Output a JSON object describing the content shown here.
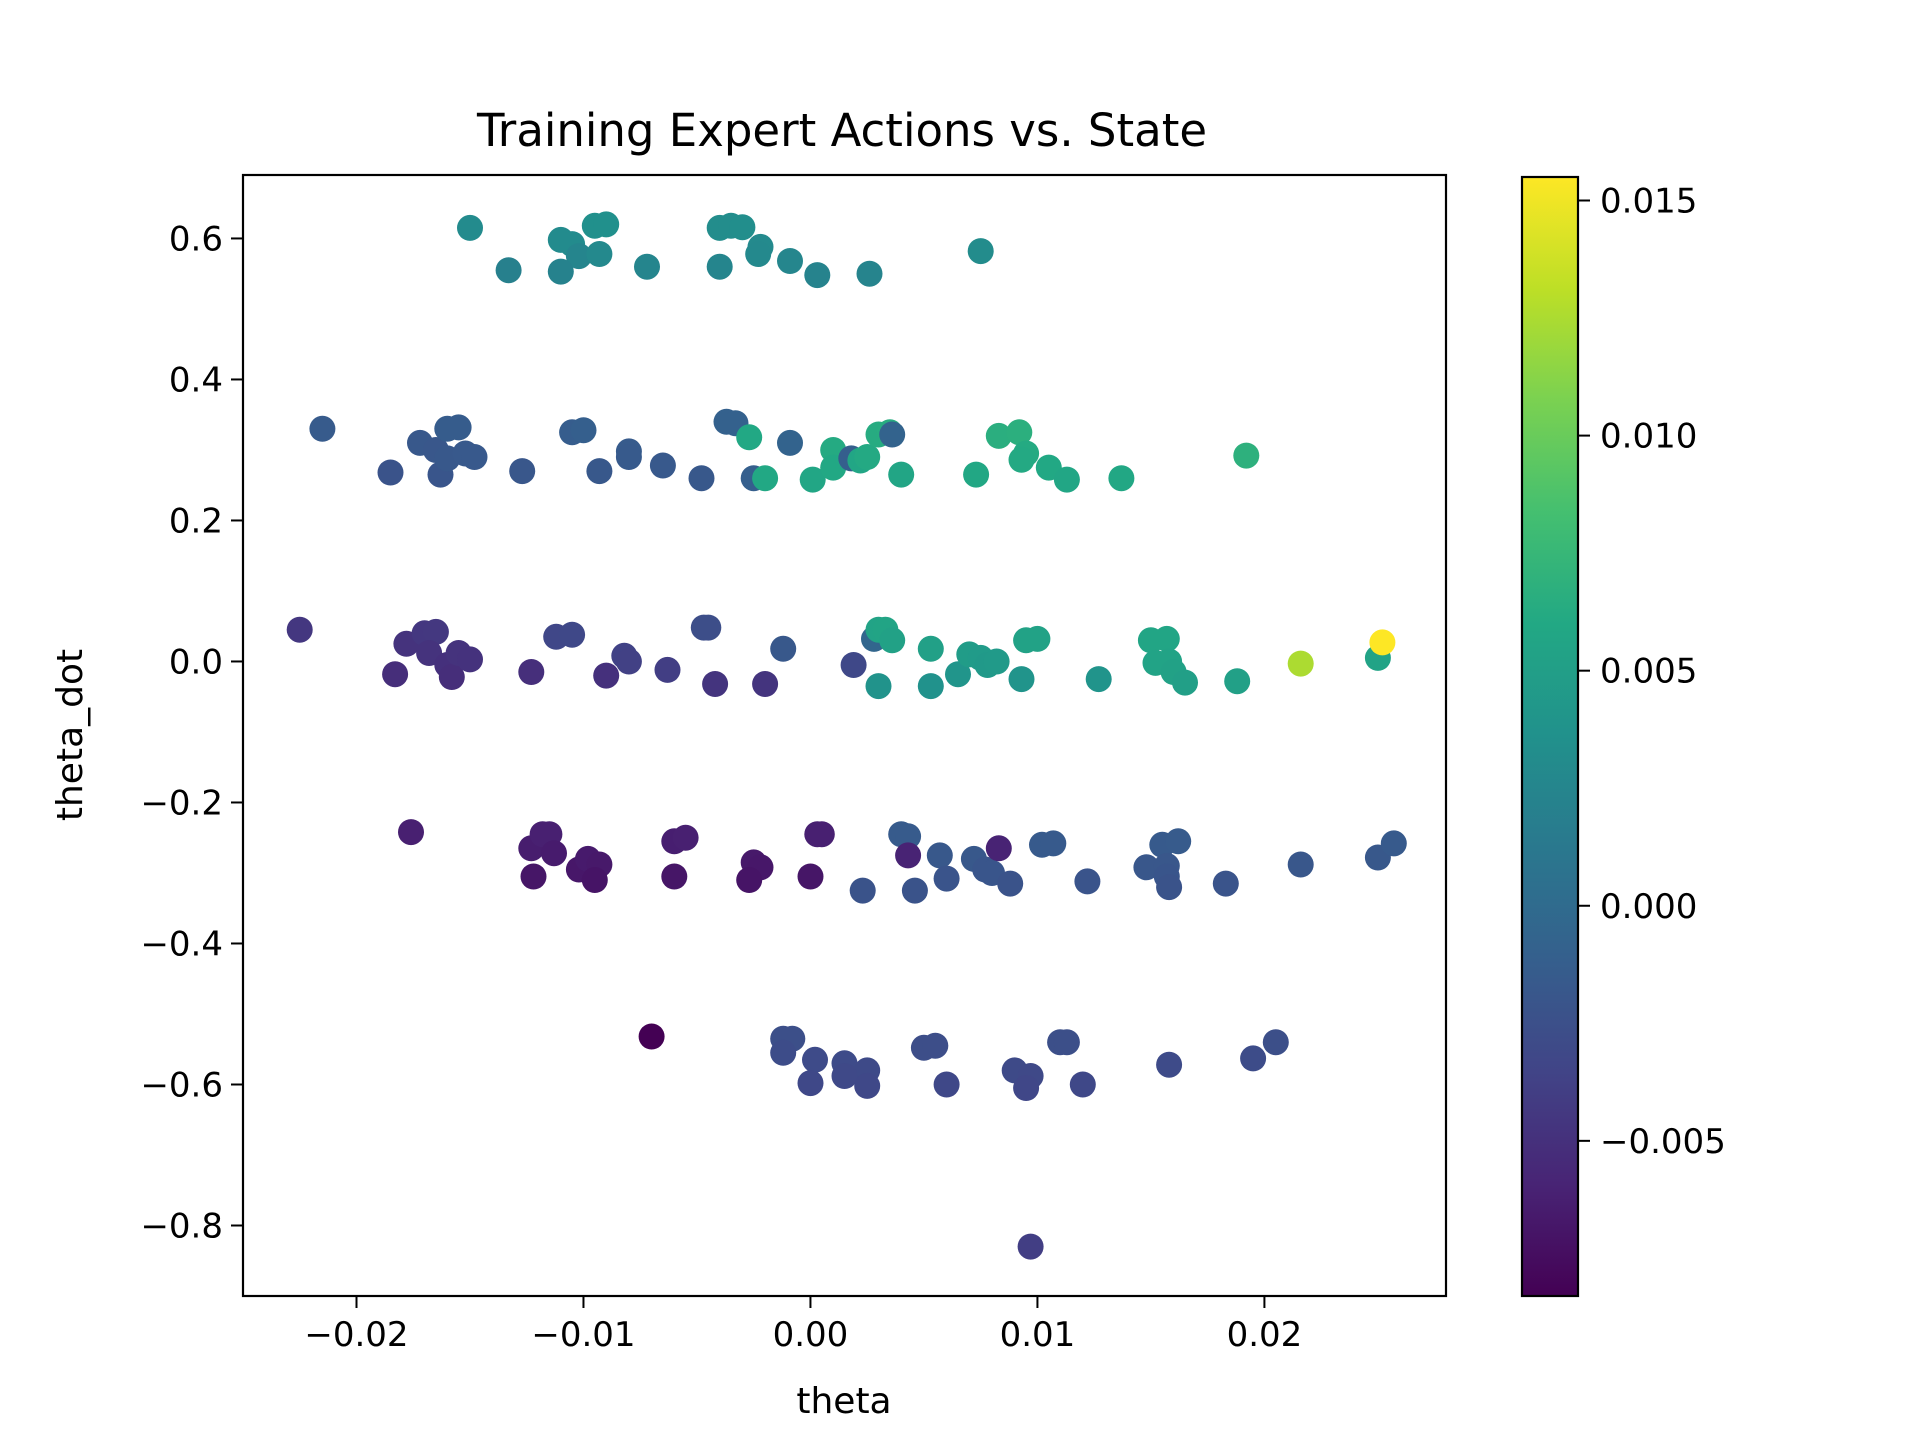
{
  "chart_data": {
    "type": "scatter",
    "title": "Training Expert Actions vs. State",
    "xlabel": "theta",
    "ylabel": "theta_dot",
    "xlim": [
      -0.025,
      0.028
    ],
    "ylim": [
      -0.9,
      0.69
    ],
    "xticks": [
      -0.02,
      -0.01,
      0.0,
      0.01,
      0.02
    ],
    "xtick_labels": [
      "−0.02",
      "−0.01",
      "0.00",
      "0.01",
      "0.02"
    ],
    "yticks": [
      0.6,
      0.4,
      0.2,
      0.0,
      -0.2,
      -0.4,
      -0.6,
      -0.8
    ],
    "ytick_labels": [
      "0.6",
      "0.4",
      "0.2",
      "0.0",
      "−0.2",
      "−0.4",
      "−0.6",
      "−0.8"
    ],
    "grid": false,
    "colorbar": {
      "cmap": "viridis",
      "range": [
        -0.0083,
        0.0155
      ],
      "ticks": [
        0.015,
        0.01,
        0.005,
        0.0,
        -0.005
      ],
      "tick_labels": [
        "0.015",
        "0.010",
        "0.005",
        "0.000",
        "−0.005"
      ]
    },
    "points": [
      {
        "x": -0.015,
        "y": 0.615,
        "c": 0.003
      },
      {
        "x": -0.0133,
        "y": 0.555,
        "c": 0.002
      },
      {
        "x": -0.011,
        "y": 0.598,
        "c": 0.003
      },
      {
        "x": -0.0105,
        "y": 0.592,
        "c": 0.003
      },
      {
        "x": -0.0102,
        "y": 0.575,
        "c": 0.0025
      },
      {
        "x": -0.011,
        "y": 0.553,
        "c": 0.0022
      },
      {
        "x": -0.0095,
        "y": 0.618,
        "c": 0.0035
      },
      {
        "x": -0.009,
        "y": 0.62,
        "c": 0.0035
      },
      {
        "x": -0.0093,
        "y": 0.578,
        "c": 0.0028
      },
      {
        "x": -0.0072,
        "y": 0.56,
        "c": 0.0025
      },
      {
        "x": -0.004,
        "y": 0.615,
        "c": 0.0032
      },
      {
        "x": -0.0035,
        "y": 0.618,
        "c": 0.0032
      },
      {
        "x": -0.003,
        "y": 0.616,
        "c": 0.0033
      },
      {
        "x": -0.004,
        "y": 0.56,
        "c": 0.0025
      },
      {
        "x": -0.0022,
        "y": 0.588,
        "c": 0.0029
      },
      {
        "x": -0.0023,
        "y": 0.578,
        "c": 0.0028
      },
      {
        "x": -0.0009,
        "y": 0.568,
        "c": 0.0026
      },
      {
        "x": 0.0003,
        "y": 0.548,
        "c": 0.0023
      },
      {
        "x": 0.0026,
        "y": 0.55,
        "c": 0.0024
      },
      {
        "x": 0.0075,
        "y": 0.582,
        "c": 0.0031
      },
      {
        "x": -0.0215,
        "y": 0.33,
        "c": -0.0015
      },
      {
        "x": -0.0185,
        "y": 0.268,
        "c": -0.0022
      },
      {
        "x": -0.0172,
        "y": 0.31,
        "c": -0.0018
      },
      {
        "x": -0.0165,
        "y": 0.3,
        "c": -0.0019
      },
      {
        "x": -0.016,
        "y": 0.33,
        "c": -0.0014
      },
      {
        "x": -0.0155,
        "y": 0.332,
        "c": -0.0014
      },
      {
        "x": -0.0163,
        "y": 0.265,
        "c": -0.002
      },
      {
        "x": -0.016,
        "y": 0.288,
        "c": -0.0018
      },
      {
        "x": -0.0152,
        "y": 0.295,
        "c": -0.0017
      },
      {
        "x": -0.0148,
        "y": 0.29,
        "c": -0.0017
      },
      {
        "x": -0.0127,
        "y": 0.27,
        "c": -0.0019
      },
      {
        "x": -0.0105,
        "y": 0.325,
        "c": -0.0013
      },
      {
        "x": -0.01,
        "y": 0.328,
        "c": -0.0012
      },
      {
        "x": -0.0093,
        "y": 0.27,
        "c": -0.0018
      },
      {
        "x": -0.008,
        "y": 0.298,
        "c": -0.0015
      },
      {
        "x": -0.008,
        "y": 0.29,
        "c": -0.0016
      },
      {
        "x": -0.0065,
        "y": 0.278,
        "c": -0.0017
      },
      {
        "x": -0.0048,
        "y": 0.26,
        "c": -0.0018
      },
      {
        "x": -0.0037,
        "y": 0.34,
        "c": -0.001
      },
      {
        "x": -0.0033,
        "y": 0.338,
        "c": -0.001
      },
      {
        "x": -0.0027,
        "y": 0.318,
        "c": 0.006
      },
      {
        "x": -0.0025,
        "y": 0.26,
        "c": -0.0012
      },
      {
        "x": -0.002,
        "y": 0.26,
        "c": 0.006
      },
      {
        "x": -0.0009,
        "y": 0.31,
        "c": -0.0008
      },
      {
        "x": 0.0001,
        "y": 0.258,
        "c": 0.0058
      },
      {
        "x": 0.001,
        "y": 0.3,
        "c": 0.0062
      },
      {
        "x": 0.001,
        "y": 0.275,
        "c": 0.006
      },
      {
        "x": 0.0018,
        "y": 0.288,
        "c": -0.0012
      },
      {
        "x": 0.0022,
        "y": 0.285,
        "c": 0.0058
      },
      {
        "x": 0.0025,
        "y": 0.29,
        "c": 0.0061
      },
      {
        "x": 0.003,
        "y": 0.322,
        "c": 0.0063
      },
      {
        "x": 0.0035,
        "y": 0.325,
        "c": 0.0064
      },
      {
        "x": 0.0036,
        "y": 0.322,
        "c": -0.0008
      },
      {
        "x": 0.004,
        "y": 0.265,
        "c": 0.0057
      },
      {
        "x": 0.0073,
        "y": 0.265,
        "c": 0.0059
      },
      {
        "x": 0.0083,
        "y": 0.32,
        "c": 0.0066
      },
      {
        "x": 0.0092,
        "y": 0.325,
        "c": 0.0067
      },
      {
        "x": 0.0095,
        "y": 0.295,
        "c": 0.0062
      },
      {
        "x": 0.0093,
        "y": 0.286,
        "c": 0.0061
      },
      {
        "x": 0.0105,
        "y": 0.275,
        "c": 0.006
      },
      {
        "x": 0.0113,
        "y": 0.258,
        "c": 0.0058
      },
      {
        "x": 0.0137,
        "y": 0.26,
        "c": 0.0059
      },
      {
        "x": 0.0192,
        "y": 0.292,
        "c": 0.0068
      },
      {
        "x": -0.0225,
        "y": 0.045,
        "c": -0.0045
      },
      {
        "x": -0.0183,
        "y": -0.018,
        "c": -0.0052
      },
      {
        "x": -0.0178,
        "y": 0.025,
        "c": -0.0048
      },
      {
        "x": -0.017,
        "y": 0.04,
        "c": -0.0045
      },
      {
        "x": -0.0165,
        "y": 0.042,
        "c": -0.0044
      },
      {
        "x": -0.0168,
        "y": 0.012,
        "c": -0.0048
      },
      {
        "x": -0.016,
        "y": -0.005,
        "c": -0.005
      },
      {
        "x": -0.0158,
        "y": -0.022,
        "c": -0.0052
      },
      {
        "x": -0.0155,
        "y": 0.012,
        "c": -0.0048
      },
      {
        "x": -0.015,
        "y": 0.003,
        "c": -0.0049
      },
      {
        "x": -0.0123,
        "y": -0.015,
        "c": -0.0051
      },
      {
        "x": -0.0112,
        "y": 0.035,
        "c": -0.0033
      },
      {
        "x": -0.0105,
        "y": 0.038,
        "c": -0.0032
      },
      {
        "x": -0.009,
        "y": -0.02,
        "c": -0.005
      },
      {
        "x": -0.0082,
        "y": 0.008,
        "c": -0.0037
      },
      {
        "x": -0.008,
        "y": 0.0,
        "c": -0.0038
      },
      {
        "x": -0.0063,
        "y": -0.012,
        "c": -0.004
      },
      {
        "x": -0.0047,
        "y": 0.048,
        "c": -0.0027
      },
      {
        "x": -0.0045,
        "y": 0.048,
        "c": -0.0027
      },
      {
        "x": -0.0042,
        "y": -0.032,
        "c": -0.0047
      },
      {
        "x": -0.002,
        "y": -0.032,
        "c": -0.0047
      },
      {
        "x": -0.0012,
        "y": 0.018,
        "c": -0.0018
      },
      {
        "x": 0.0019,
        "y": -0.005,
        "c": -0.0032
      },
      {
        "x": 0.0028,
        "y": 0.032,
        "c": -0.0005
      },
      {
        "x": 0.003,
        "y": 0.045,
        "c": 0.0055
      },
      {
        "x": 0.0033,
        "y": 0.045,
        "c": 0.0056
      },
      {
        "x": 0.0036,
        "y": 0.03,
        "c": 0.0053
      },
      {
        "x": 0.003,
        "y": -0.035,
        "c": 0.0038
      },
      {
        "x": 0.0053,
        "y": 0.018,
        "c": 0.0052
      },
      {
        "x": 0.0053,
        "y": -0.035,
        "c": 0.0037
      },
      {
        "x": 0.0065,
        "y": -0.018,
        "c": 0.004
      },
      {
        "x": 0.007,
        "y": 0.01,
        "c": 0.0047
      },
      {
        "x": 0.0075,
        "y": 0.005,
        "c": 0.0046
      },
      {
        "x": 0.0078,
        "y": -0.005,
        "c": 0.0044
      },
      {
        "x": 0.0082,
        "y": 0.0,
        "c": 0.0045
      },
      {
        "x": 0.0093,
        "y": -0.025,
        "c": 0.0039
      },
      {
        "x": 0.0095,
        "y": 0.03,
        "c": 0.0054
      },
      {
        "x": 0.01,
        "y": 0.032,
        "c": 0.0054
      },
      {
        "x": 0.0127,
        "y": -0.025,
        "c": 0.0039
      },
      {
        "x": 0.015,
        "y": 0.03,
        "c": 0.0057
      },
      {
        "x": 0.0157,
        "y": 0.032,
        "c": 0.0057
      },
      {
        "x": 0.0152,
        "y": -0.002,
        "c": 0.0055
      },
      {
        "x": 0.0158,
        "y": 0.0,
        "c": 0.0055
      },
      {
        "x": 0.016,
        "y": -0.015,
        "c": 0.0053
      },
      {
        "x": 0.0165,
        "y": -0.03,
        "c": 0.0051
      },
      {
        "x": 0.0188,
        "y": -0.028,
        "c": 0.0052
      },
      {
        "x": 0.0216,
        "y": -0.003,
        "c": 0.0125
      },
      {
        "x": 0.025,
        "y": 0.005,
        "c": 0.0055
      },
      {
        "x": 0.0252,
        "y": 0.027,
        "c": 0.0155
      },
      {
        "x": -0.0176,
        "y": -0.242,
        "c": -0.0062
      },
      {
        "x": -0.0123,
        "y": -0.265,
        "c": -0.0064
      },
      {
        "x": -0.0118,
        "y": -0.245,
        "c": -0.0062
      },
      {
        "x": -0.0115,
        "y": -0.245,
        "c": -0.0062
      },
      {
        "x": -0.0113,
        "y": -0.272,
        "c": -0.0065
      },
      {
        "x": -0.0122,
        "y": -0.305,
        "c": -0.0069
      },
      {
        "x": -0.0102,
        "y": -0.295,
        "c": -0.0068
      },
      {
        "x": -0.0098,
        "y": -0.28,
        "c": -0.0066
      },
      {
        "x": -0.0093,
        "y": -0.288,
        "c": -0.0067
      },
      {
        "x": -0.0095,
        "y": -0.31,
        "c": -0.007
      },
      {
        "x": -0.006,
        "y": -0.255,
        "c": -0.0063
      },
      {
        "x": -0.0055,
        "y": -0.25,
        "c": -0.0062
      },
      {
        "x": -0.006,
        "y": -0.305,
        "c": -0.0069
      },
      {
        "x": -0.0025,
        "y": -0.285,
        "c": -0.0067
      },
      {
        "x": -0.0022,
        "y": -0.292,
        "c": -0.0068
      },
      {
        "x": -0.0027,
        "y": -0.31,
        "c": -0.007
      },
      {
        "x": 0.0,
        "y": -0.305,
        "c": -0.0069
      },
      {
        "x": 0.0003,
        "y": -0.245,
        "c": -0.0062
      },
      {
        "x": 0.0005,
        "y": -0.245,
        "c": -0.0062
      },
      {
        "x": 0.0023,
        "y": -0.325,
        "c": -0.0022
      },
      {
        "x": 0.004,
        "y": -0.245,
        "c": -0.0015
      },
      {
        "x": 0.0043,
        "y": -0.248,
        "c": -0.0015
      },
      {
        "x": 0.0043,
        "y": -0.275,
        "c": -0.006
      },
      {
        "x": 0.0046,
        "y": -0.325,
        "c": -0.0022
      },
      {
        "x": 0.0057,
        "y": -0.275,
        "c": -0.0018
      },
      {
        "x": 0.006,
        "y": -0.308,
        "c": -0.0021
      },
      {
        "x": 0.0072,
        "y": -0.28,
        "c": -0.0018
      },
      {
        "x": 0.0077,
        "y": -0.295,
        "c": -0.002
      },
      {
        "x": 0.008,
        "y": -0.3,
        "c": -0.002
      },
      {
        "x": 0.0083,
        "y": -0.265,
        "c": -0.006
      },
      {
        "x": 0.0088,
        "y": -0.315,
        "c": -0.0022
      },
      {
        "x": 0.0102,
        "y": -0.26,
        "c": -0.0016
      },
      {
        "x": 0.0107,
        "y": -0.258,
        "c": -0.0016
      },
      {
        "x": 0.0122,
        "y": -0.312,
        "c": -0.0021
      },
      {
        "x": 0.0148,
        "y": -0.292,
        "c": -0.0019
      },
      {
        "x": 0.0155,
        "y": -0.26,
        "c": -0.0016
      },
      {
        "x": 0.0157,
        "y": -0.29,
        "c": -0.0019
      },
      {
        "x": 0.0162,
        "y": -0.255,
        "c": -0.0015
      },
      {
        "x": 0.0157,
        "y": -0.305,
        "c": -0.002
      },
      {
        "x": 0.0158,
        "y": -0.32,
        "c": -0.0022
      },
      {
        "x": 0.0183,
        "y": -0.315,
        "c": -0.0021
      },
      {
        "x": 0.0216,
        "y": -0.288,
        "c": -0.0019
      },
      {
        "x": 0.025,
        "y": -0.278,
        "c": -0.0018
      },
      {
        "x": 0.0257,
        "y": -0.258,
        "c": -0.0016
      },
      {
        "x": -0.007,
        "y": -0.532,
        "c": -0.0083
      },
      {
        "x": -0.0012,
        "y": -0.535,
        "c": -0.0026
      },
      {
        "x": -0.0008,
        "y": -0.535,
        "c": -0.0026
      },
      {
        "x": -0.0012,
        "y": -0.555,
        "c": -0.0028
      },
      {
        "x": 0.0002,
        "y": -0.565,
        "c": -0.0029
      },
      {
        "x": 0.0,
        "y": -0.598,
        "c": -0.0032
      },
      {
        "x": 0.0015,
        "y": -0.57,
        "c": -0.0029
      },
      {
        "x": 0.0025,
        "y": -0.58,
        "c": -0.003
      },
      {
        "x": 0.0015,
        "y": -0.588,
        "c": -0.0031
      },
      {
        "x": 0.0025,
        "y": -0.602,
        "c": -0.0032
      },
      {
        "x": 0.005,
        "y": -0.548,
        "c": -0.0027
      },
      {
        "x": 0.0055,
        "y": -0.545,
        "c": -0.0027
      },
      {
        "x": 0.006,
        "y": -0.6,
        "c": -0.0032
      },
      {
        "x": 0.009,
        "y": -0.58,
        "c": -0.003
      },
      {
        "x": 0.0097,
        "y": -0.588,
        "c": -0.0031
      },
      {
        "x": 0.0095,
        "y": -0.605,
        "c": -0.0033
      },
      {
        "x": 0.011,
        "y": -0.54,
        "c": -0.0026
      },
      {
        "x": 0.0113,
        "y": -0.54,
        "c": -0.0026
      },
      {
        "x": 0.012,
        "y": -0.6,
        "c": -0.0032
      },
      {
        "x": 0.0158,
        "y": -0.572,
        "c": -0.0029
      },
      {
        "x": 0.0195,
        "y": -0.563,
        "c": -0.0028
      },
      {
        "x": 0.0205,
        "y": -0.54,
        "c": -0.0026
      },
      {
        "x": 0.0097,
        "y": -0.83,
        "c": -0.004
      }
    ]
  }
}
